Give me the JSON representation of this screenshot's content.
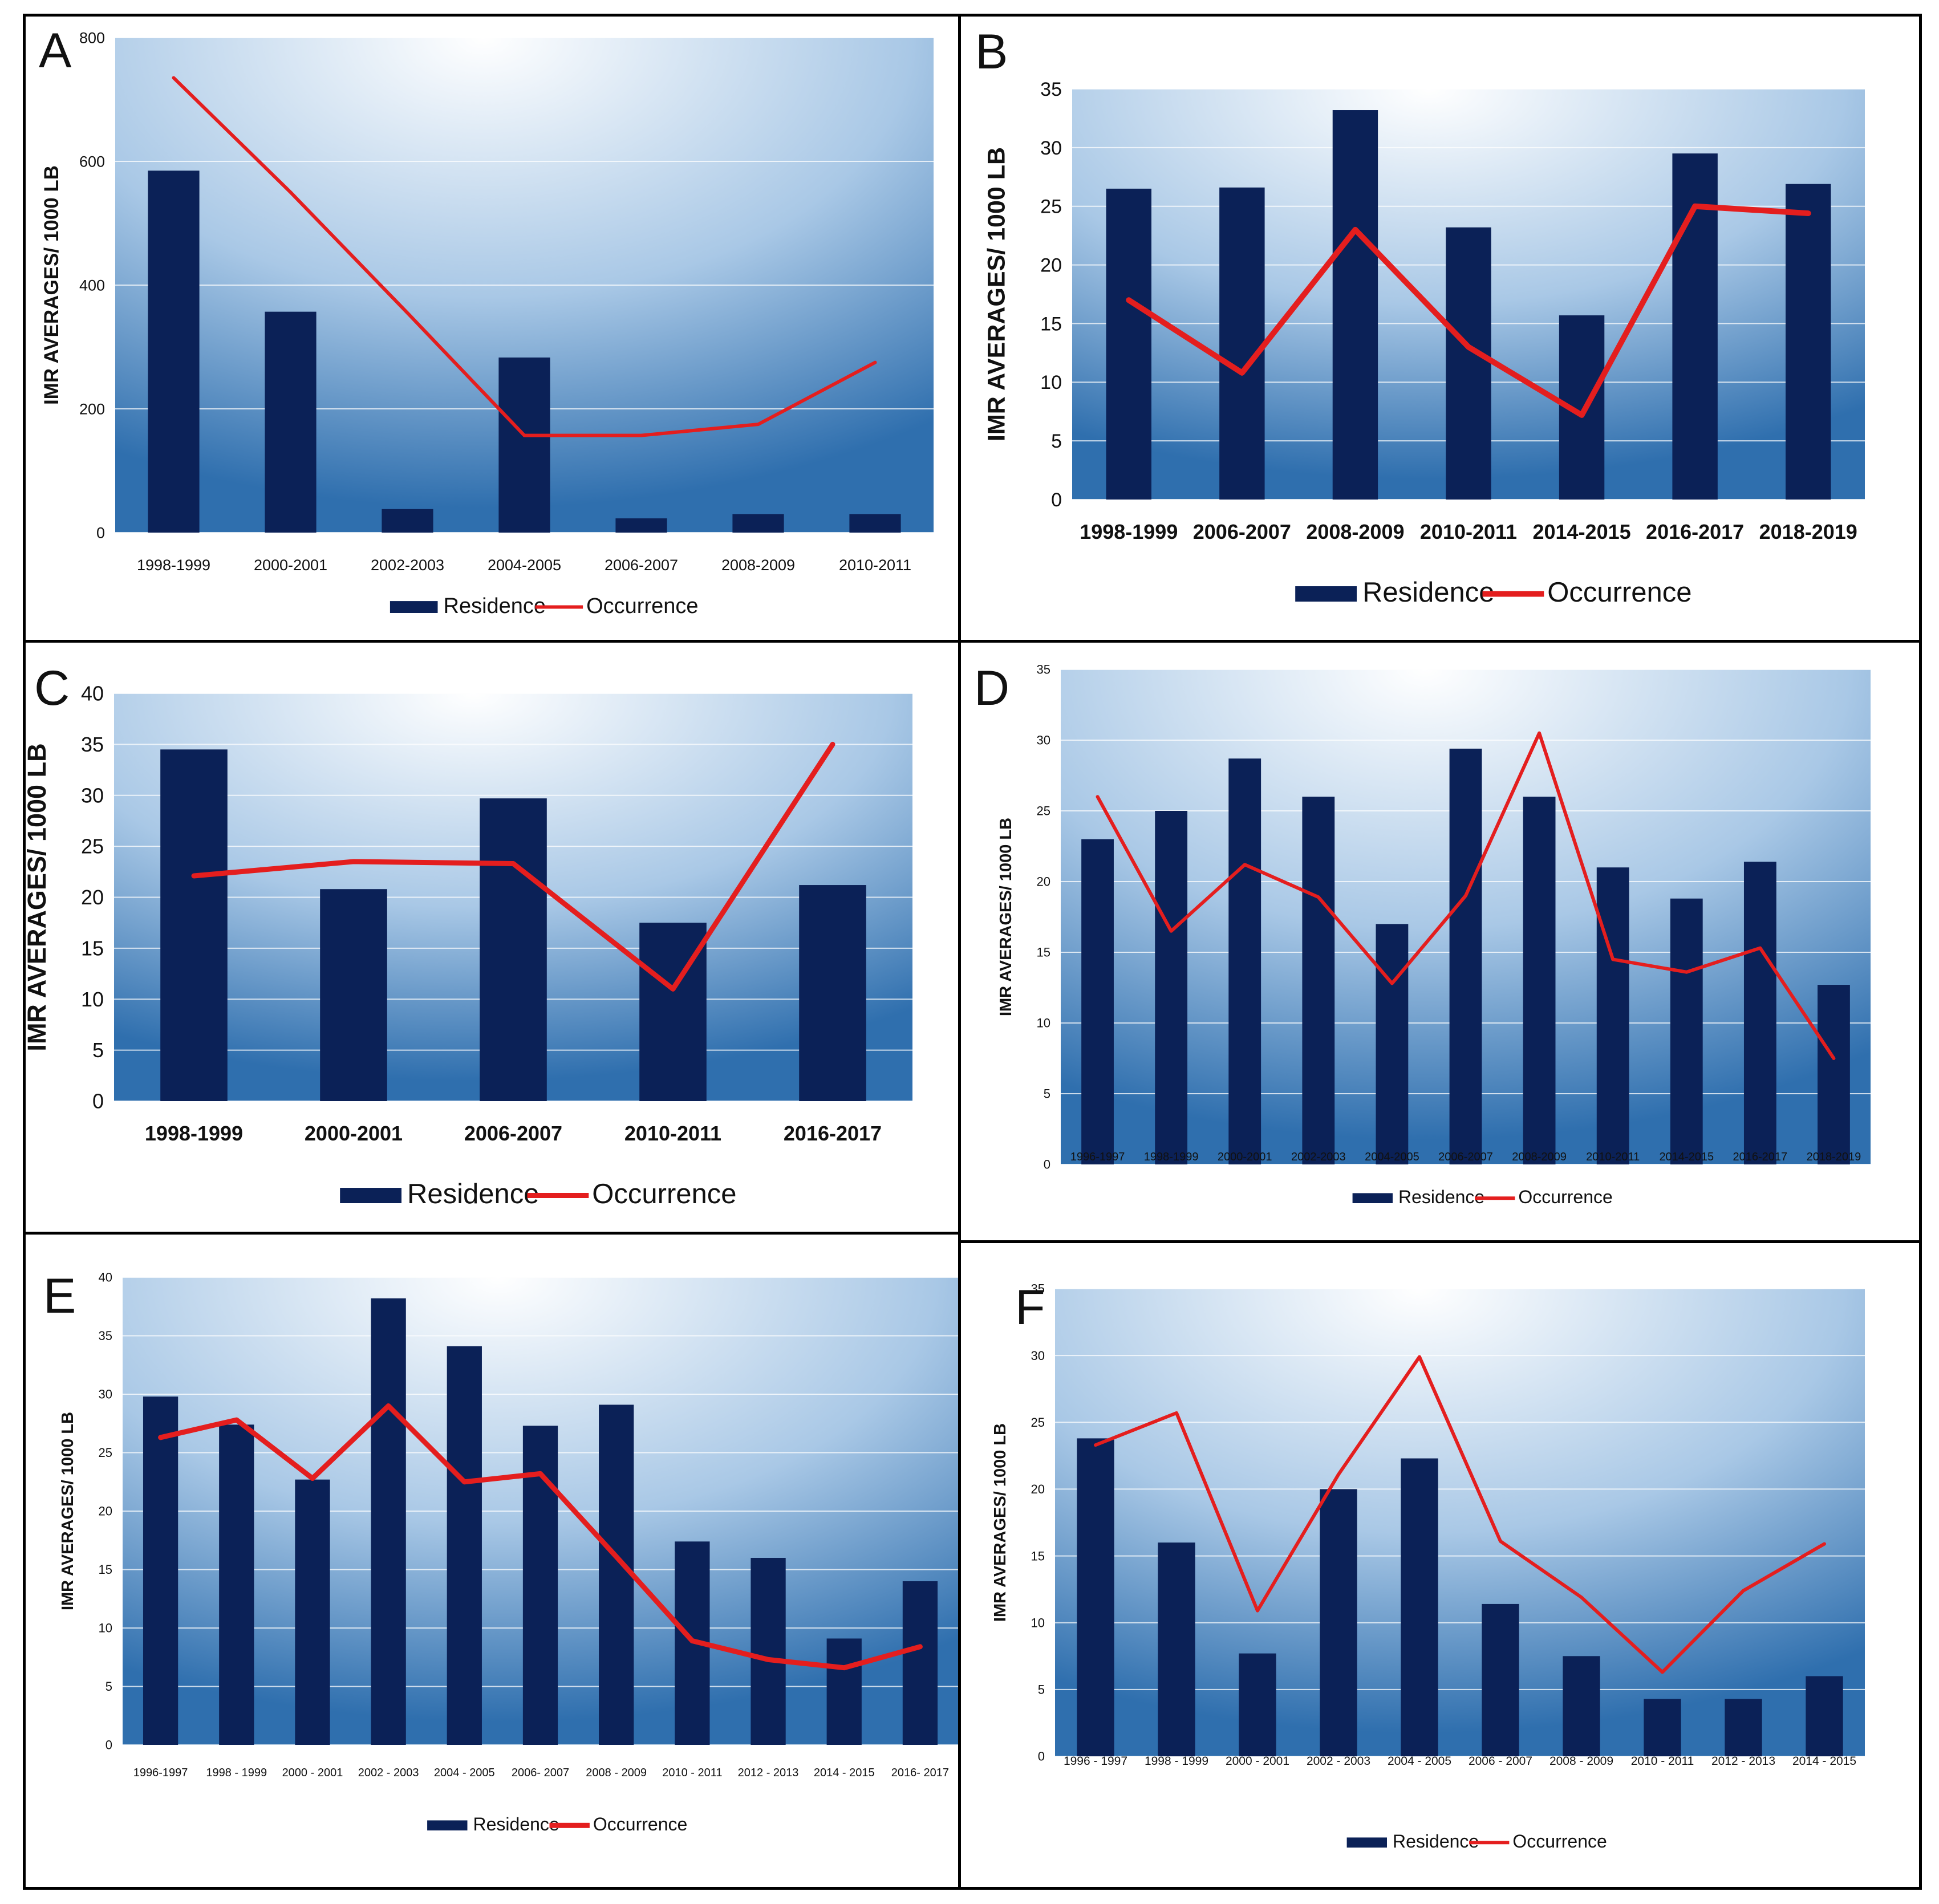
{
  "colors": {
    "bar": "#0b2157",
    "line": "#e41e1e",
    "grid": "#ffffff",
    "plot_edge": "#2f6fae",
    "plot_center": "#ffffff"
  },
  "chart_data": [
    {
      "panel": "A",
      "type": "bar",
      "ylabel": "IMR AVERAGES/ 1000 LB",
      "ylim": [
        0,
        800
      ],
      "yticks": [
        0,
        200,
        400,
        600,
        800
      ],
      "categories": [
        "1998-1999",
        "2000-2001",
        "2002-2003",
        "2004-2005",
        "2006-2007",
        "2008-2009",
        "2010-2011"
      ],
      "series": [
        {
          "name": "Residence",
          "kind": "bar",
          "values": [
            585,
            357,
            38,
            283,
            23,
            30,
            30
          ]
        },
        {
          "name": "Occurrence",
          "kind": "line",
          "values": [
            735,
            550,
            355,
            157,
            157,
            175,
            275
          ]
        }
      ],
      "legend": [
        "Residence",
        "Occurrence"
      ]
    },
    {
      "panel": "B",
      "type": "bar",
      "ylabel": "IMR AVERAGES/ 1000 LB",
      "ylim": [
        0,
        35
      ],
      "yticks": [
        0,
        5,
        10,
        15,
        20,
        25,
        30,
        35
      ],
      "categories": [
        "1998-1999",
        "2006-2007",
        "2008-2009",
        "2010-2011",
        "2014-2015",
        "2016-2017",
        "2018-2019"
      ],
      "series": [
        {
          "name": "Residence",
          "kind": "bar",
          "values": [
            26.5,
            26.6,
            33.2,
            23.2,
            15.7,
            29.5,
            26.9
          ]
        },
        {
          "name": "Occurrence",
          "kind": "line",
          "values": [
            17,
            10.8,
            23,
            13,
            7.2,
            25,
            24.4
          ]
        }
      ],
      "legend": [
        "Residence",
        "Occurrence"
      ]
    },
    {
      "panel": "C",
      "type": "bar",
      "ylabel": "IMR AVERAGES/ 1000 LB",
      "ylim": [
        0,
        40
      ],
      "yticks": [
        0,
        5,
        10,
        15,
        20,
        25,
        30,
        35,
        40
      ],
      "categories": [
        "1998-1999",
        "2000-2001",
        "2006-2007",
        "2010-2011",
        "2016-2017"
      ],
      "series": [
        {
          "name": "Residence",
          "kind": "bar",
          "values": [
            34.5,
            20.8,
            29.7,
            17.5,
            21.2
          ]
        },
        {
          "name": "Occurrence",
          "kind": "line",
          "values": [
            22.1,
            23.5,
            23.3,
            11,
            35
          ]
        }
      ],
      "legend": [
        "Residence",
        "Occurrence"
      ]
    },
    {
      "panel": "D",
      "type": "bar",
      "ylabel": "IMR AVERAGES/ 1000 LB",
      "ylim": [
        0,
        35
      ],
      "yticks": [
        0,
        5,
        10,
        15,
        20,
        25,
        30,
        35
      ],
      "categories": [
        "1996-1997",
        "1998-1999",
        "2000-2001",
        "2002-2003",
        "2004-2005",
        "2006-2007",
        "2008-2009",
        "2010-2011",
        "2014-2015",
        "2016-2017",
        "2018-2019"
      ],
      "series": [
        {
          "name": "Residence",
          "kind": "bar",
          "values": [
            23,
            25,
            28.7,
            26,
            17,
            29.4,
            26,
            21,
            18.8,
            21.4,
            12.7
          ]
        },
        {
          "name": "Occurrence",
          "kind": "line",
          "values": [
            26,
            16.5,
            21.2,
            18.9,
            12.8,
            19,
            30.5,
            14.5,
            13.6,
            15.3,
            7.5
          ]
        }
      ],
      "legend": [
        "Residence",
        "Occurrence"
      ]
    },
    {
      "panel": "E",
      "type": "bar",
      "ylabel": "IMR AVERAGES/ 1000 LB",
      "ylim": [
        0,
        40
      ],
      "yticks": [
        0,
        5,
        10,
        15,
        20,
        25,
        30,
        35,
        40
      ],
      "categories": [
        "1996-1997",
        "1998 - 1999",
        "2000 - 2001",
        "2002 - 2003",
        "2004 - 2005",
        "2006- 2007",
        "2008 - 2009",
        "2010 - 2011",
        "2012 - 2013",
        "2014 - 2015",
        "2016- 2017"
      ],
      "series": [
        {
          "name": "Residence",
          "kind": "bar",
          "values": [
            29.8,
            27.4,
            22.7,
            38.2,
            34.1,
            27.3,
            29.1,
            17.4,
            16,
            9.1,
            14
          ]
        },
        {
          "name": "Occurrence",
          "kind": "line",
          "values": [
            26.3,
            27.8,
            22.8,
            29,
            22.5,
            23.2,
            16.1,
            8.9,
            7.3,
            6.6,
            8.4
          ]
        }
      ],
      "legend": [
        "Residence",
        "Occurrence"
      ]
    },
    {
      "panel": "F",
      "type": "bar",
      "ylabel": "IMR AVERAGES/ 1000 LB",
      "ylim": [
        0,
        35
      ],
      "yticks": [
        0,
        5,
        10,
        15,
        20,
        25,
        30,
        35
      ],
      "categories": [
        "1996 - 1997",
        "1998 - 1999",
        "2000 - 2001",
        "2002 - 2003",
        "2004 - 2005",
        "2006 - 2007",
        "2008 - 2009",
        "2010 - 2011",
        "2012 - 2013",
        "2014 - 2015"
      ],
      "series": [
        {
          "name": "Residence",
          "kind": "bar",
          "values": [
            23.8,
            16,
            7.7,
            20,
            22.3,
            11.4,
            7.5,
            4.3,
            4.3,
            6
          ]
        },
        {
          "name": "Occurrence",
          "kind": "line",
          "values": [
            23.3,
            25.7,
            10.9,
            21.1,
            29.9,
            16.1,
            11.9,
            6.3,
            12.4,
            15.9
          ]
        }
      ],
      "legend": [
        "Residence",
        "Occurrence"
      ]
    }
  ]
}
